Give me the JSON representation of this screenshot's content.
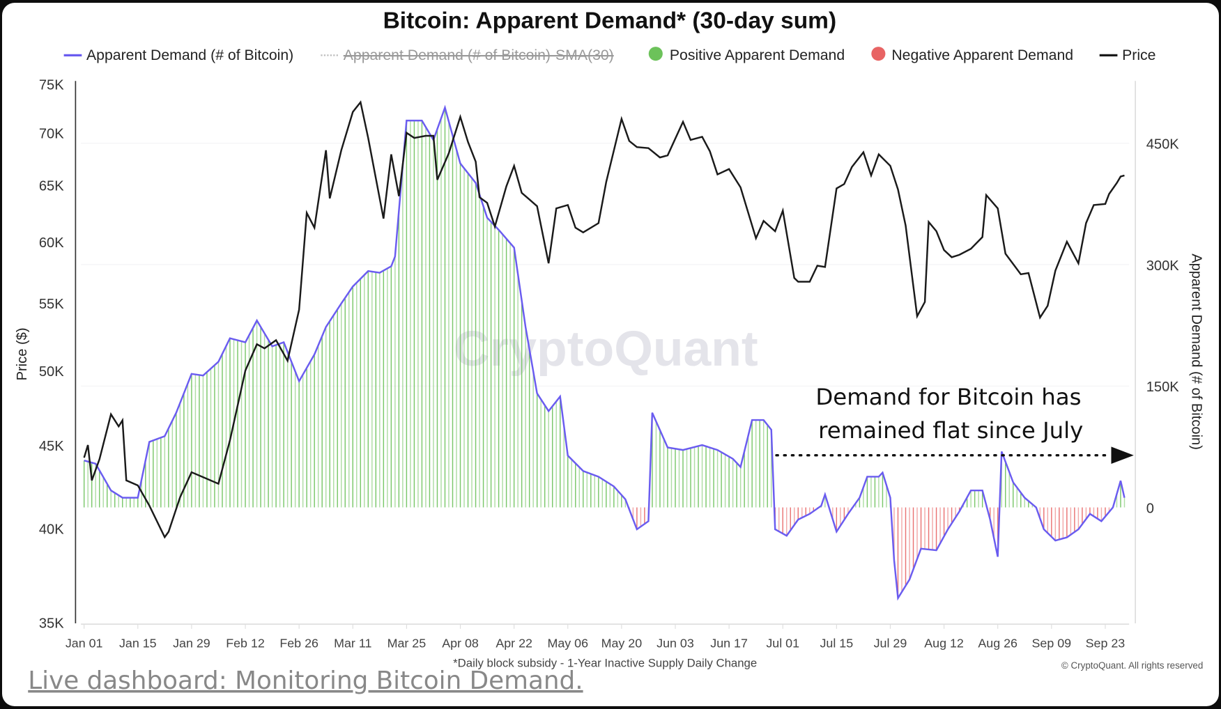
{
  "title": "Bitcoin: Apparent Demand* (30-day sum)",
  "legend": [
    {
      "label": "Apparent Demand (# of Bitcoin)",
      "color": "#6a5cf0",
      "kind": "line",
      "hidden": false
    },
    {
      "label": "Apparent Demand (# of Bitcoin)-SMA(30)",
      "color": "#bbbbbb",
      "kind": "dotted-line",
      "hidden": true
    },
    {
      "label": "Positive Apparent Demand",
      "color": "#6cc25a",
      "kind": "dot",
      "hidden": false
    },
    {
      "label": "Negative Apparent Demand",
      "color": "#e86464",
      "kind": "dot",
      "hidden": false
    },
    {
      "label": "Price",
      "color": "#1a1a1a",
      "kind": "line",
      "hidden": false
    }
  ],
  "annotation": {
    "line1": "Demand for Bitcoin has",
    "line2": "remained flat since July"
  },
  "footnote": "*Daily block subsidy - 1-Year Inactive Supply Daily Change",
  "copyright": "© CryptoQuant. All rights reserved",
  "watermark": "CryptoQuant",
  "dashboard_link": "Live dashboard: Monitoring Bitcoin Demand.",
  "chart_data": {
    "type": "line",
    "title": "Bitcoin: Apparent Demand* (30-day sum)",
    "xlabel": "",
    "y_left": {
      "label": "Price ($)",
      "scale": "log",
      "range": [
        35000,
        75000
      ],
      "ticks": [
        "35K",
        "40K",
        "45K",
        "50K",
        "55K",
        "60K",
        "65K",
        "70K",
        "75K"
      ],
      "tick_values": [
        35,
        40,
        45,
        50,
        55,
        60,
        65,
        70,
        75
      ]
    },
    "y_right": {
      "label": "Apparent Demand (# of Bitcoin)",
      "scale": "linear",
      "range": [
        -150000,
        520000
      ],
      "ticks": [
        "0",
        "150K",
        "300K",
        "450K"
      ],
      "tick_values": [
        0,
        150,
        300,
        450
      ]
    },
    "x_ticks": [
      "Jan 01",
      "Jan 15",
      "Jan 29",
      "Feb 12",
      "Feb 26",
      "Mar 11",
      "Mar 25",
      "Apr 08",
      "Apr 22",
      "May 06",
      "May 20",
      "Jun 03",
      "Jun 17",
      "Jul 01",
      "Jul 15",
      "Jul 29",
      "Aug 12",
      "Aug 26",
      "Sep 09",
      "Sep 23"
    ],
    "x_tick_dates": [
      "01-01",
      "01-15",
      "01-29",
      "02-12",
      "02-26",
      "03-11",
      "03-25",
      "04-08",
      "04-22",
      "05-06",
      "05-20",
      "06-03",
      "06-17",
      "07-01",
      "07-15",
      "07-29",
      "08-12",
      "08-26",
      "09-09",
      "09-23"
    ],
    "series": [
      {
        "name": "Price",
        "axis": "left",
        "unit": "K USD",
        "color": "#1a1a1a",
        "points": [
          [
            "01-01",
            44.2
          ],
          [
            "01-02",
            45.0
          ],
          [
            "01-03",
            42.8
          ],
          [
            "01-05",
            44.1
          ],
          [
            "01-08",
            47.0
          ],
          [
            "01-10",
            46.2
          ],
          [
            "01-11",
            46.6
          ],
          [
            "01-12",
            42.8
          ],
          [
            "01-15",
            42.5
          ],
          [
            "01-18",
            41.3
          ],
          [
            "01-22",
            39.5
          ],
          [
            "01-23",
            39.8
          ],
          [
            "01-26",
            41.8
          ],
          [
            "01-29",
            43.3
          ],
          [
            "02-01",
            43.0
          ],
          [
            "02-05",
            42.6
          ],
          [
            "02-08",
            45.3
          ],
          [
            "02-12",
            50.0
          ],
          [
            "02-15",
            51.9
          ],
          [
            "02-17",
            51.6
          ],
          [
            "02-20",
            52.2
          ],
          [
            "02-23",
            50.7
          ],
          [
            "02-26",
            54.5
          ],
          [
            "02-28",
            62.5
          ],
          [
            "03-01",
            61.2
          ],
          [
            "03-04",
            68.3
          ],
          [
            "03-05",
            63.8
          ],
          [
            "03-08",
            68.3
          ],
          [
            "03-11",
            72.1
          ],
          [
            "03-13",
            73.1
          ],
          [
            "03-15",
            69.5
          ],
          [
            "03-19",
            62.0
          ],
          [
            "03-21",
            67.9
          ],
          [
            "03-23",
            64.0
          ],
          [
            "03-25",
            70.0
          ],
          [
            "03-27",
            69.5
          ],
          [
            "03-30",
            69.7
          ],
          [
            "04-01",
            69.7
          ],
          [
            "04-02",
            65.5
          ],
          [
            "04-05",
            68.0
          ],
          [
            "04-08",
            71.6
          ],
          [
            "04-10",
            69.1
          ],
          [
            "04-12",
            67.2
          ],
          [
            "04-13",
            63.9
          ],
          [
            "04-15",
            63.4
          ],
          [
            "04-17",
            61.3
          ],
          [
            "04-20",
            64.9
          ],
          [
            "04-22",
            66.8
          ],
          [
            "04-24",
            64.3
          ],
          [
            "04-26",
            63.7
          ],
          [
            "04-28",
            63.1
          ],
          [
            "05-01",
            58.2
          ],
          [
            "05-03",
            62.9
          ],
          [
            "05-06",
            63.2
          ],
          [
            "05-08",
            61.2
          ],
          [
            "05-10",
            60.8
          ],
          [
            "05-14",
            61.6
          ],
          [
            "05-16",
            65.3
          ],
          [
            "05-20",
            71.4
          ],
          [
            "05-22",
            69.2
          ],
          [
            "05-24",
            68.6
          ],
          [
            "05-27",
            68.5
          ],
          [
            "05-30",
            67.6
          ],
          [
            "06-01",
            67.8
          ],
          [
            "06-05",
            71.1
          ],
          [
            "06-07",
            69.3
          ],
          [
            "06-10",
            69.6
          ],
          [
            "06-12",
            68.2
          ],
          [
            "06-14",
            66.0
          ],
          [
            "06-17",
            66.5
          ],
          [
            "06-20",
            64.8
          ],
          [
            "06-24",
            60.3
          ],
          [
            "06-26",
            61.8
          ],
          [
            "06-29",
            60.9
          ],
          [
            "07-01",
            62.7
          ],
          [
            "07-04",
            57.0
          ],
          [
            "07-05",
            56.7
          ],
          [
            "07-08",
            56.7
          ],
          [
            "07-10",
            58.0
          ],
          [
            "07-12",
            57.9
          ],
          [
            "07-15",
            64.7
          ],
          [
            "07-17",
            65.1
          ],
          [
            "07-19",
            66.7
          ],
          [
            "07-22",
            68.1
          ],
          [
            "07-24",
            65.9
          ],
          [
            "07-26",
            67.9
          ],
          [
            "07-29",
            66.8
          ],
          [
            "07-31",
            64.6
          ],
          [
            "08-02",
            61.4
          ],
          [
            "08-05",
            54.0
          ],
          [
            "08-07",
            55.1
          ],
          [
            "08-08",
            61.7
          ],
          [
            "08-10",
            60.9
          ],
          [
            "08-12",
            59.3
          ],
          [
            "08-14",
            58.7
          ],
          [
            "08-16",
            58.9
          ],
          [
            "08-19",
            59.4
          ],
          [
            "08-22",
            60.4
          ],
          [
            "08-23",
            64.1
          ],
          [
            "08-26",
            62.9
          ],
          [
            "08-28",
            59.0
          ],
          [
            "09-01",
            57.3
          ],
          [
            "09-03",
            57.4
          ],
          [
            "09-06",
            53.9
          ],
          [
            "09-08",
            54.8
          ],
          [
            "09-10",
            57.6
          ],
          [
            "09-13",
            60.0
          ],
          [
            "09-16",
            58.2
          ],
          [
            "09-18",
            61.6
          ],
          [
            "09-20",
            63.2
          ],
          [
            "09-23",
            63.3
          ],
          [
            "09-24",
            64.2
          ],
          [
            "09-26",
            65.2
          ],
          [
            "09-27",
            65.8
          ],
          [
            "09-28",
            65.9
          ]
        ]
      },
      {
        "name": "Apparent Demand (# of Bitcoin)",
        "axis": "right",
        "unit": "K BTC",
        "color": "#6a5cf0",
        "points": [
          [
            "01-01",
            58
          ],
          [
            "01-04",
            54
          ],
          [
            "01-08",
            21
          ],
          [
            "01-11",
            12
          ],
          [
            "01-15",
            12
          ],
          [
            "01-18",
            81
          ],
          [
            "01-22",
            88
          ],
          [
            "01-25",
            117
          ],
          [
            "01-29",
            165
          ],
          [
            "02-01",
            163
          ],
          [
            "02-05",
            180
          ],
          [
            "02-08",
            209
          ],
          [
            "02-12",
            204
          ],
          [
            "02-15",
            231
          ],
          [
            "02-19",
            199
          ],
          [
            "02-22",
            204
          ],
          [
            "02-26",
            156
          ],
          [
            "03-01",
            189
          ],
          [
            "03-04",
            223
          ],
          [
            "03-08",
            252
          ],
          [
            "03-11",
            273
          ],
          [
            "03-15",
            292
          ],
          [
            "03-18",
            290
          ],
          [
            "03-21",
            298
          ],
          [
            "03-22",
            310
          ],
          [
            "03-25",
            478
          ],
          [
            "03-29",
            478
          ],
          [
            "04-01",
            454
          ],
          [
            "04-04",
            494
          ],
          [
            "04-08",
            425
          ],
          [
            "04-12",
            401
          ],
          [
            "04-15",
            358
          ],
          [
            "04-18",
            343
          ],
          [
            "04-22",
            321
          ],
          [
            "04-25",
            223
          ],
          [
            "04-28",
            141
          ],
          [
            "05-01",
            119
          ],
          [
            "05-04",
            137
          ],
          [
            "05-06",
            64
          ],
          [
            "05-10",
            45
          ],
          [
            "05-14",
            38
          ],
          [
            "05-18",
            26
          ],
          [
            "05-21",
            10
          ],
          [
            "05-24",
            -27
          ],
          [
            "05-27",
            -17
          ],
          [
            "05-28",
            117
          ],
          [
            "06-01",
            74
          ],
          [
            "06-05",
            71
          ],
          [
            "06-10",
            77
          ],
          [
            "06-14",
            71
          ],
          [
            "06-18",
            60
          ],
          [
            "06-20",
            50
          ],
          [
            "06-23",
            108
          ],
          [
            "06-26",
            108
          ],
          [
            "06-28",
            96
          ],
          [
            "06-29",
            -27
          ],
          [
            "07-02",
            -35
          ],
          [
            "07-05",
            -15
          ],
          [
            "07-08",
            -8
          ],
          [
            "07-11",
            2
          ],
          [
            "07-12",
            16
          ],
          [
            "07-15",
            -30
          ],
          [
            "07-18",
            -8
          ],
          [
            "07-21",
            12
          ],
          [
            "07-23",
            38
          ],
          [
            "07-26",
            38
          ],
          [
            "07-27",
            43
          ],
          [
            "07-29",
            12
          ],
          [
            "07-30",
            -65
          ],
          [
            "07-31",
            -112
          ],
          [
            "08-03",
            -89
          ],
          [
            "08-06",
            -51
          ],
          [
            "08-10",
            -53
          ],
          [
            "08-13",
            -27
          ],
          [
            "08-16",
            -5
          ],
          [
            "08-19",
            21
          ],
          [
            "08-22",
            21
          ],
          [
            "08-24",
            -15
          ],
          [
            "08-26",
            -61
          ],
          [
            "08-27",
            69
          ],
          [
            "08-30",
            31
          ],
          [
            "09-02",
            12
          ],
          [
            "09-05",
            0
          ],
          [
            "09-07",
            -27
          ],
          [
            "09-10",
            -41
          ],
          [
            "09-13",
            -37
          ],
          [
            "09-16",
            -27
          ],
          [
            "09-19",
            -8
          ],
          [
            "09-22",
            -17
          ],
          [
            "09-25",
            0
          ],
          [
            "09-27",
            33
          ],
          [
            "09-28",
            12
          ]
        ]
      }
    ],
    "bar_colors": {
      "positive": "#6cc25a",
      "negative": "#e86464"
    },
    "grid": true,
    "legend_position": "top"
  }
}
